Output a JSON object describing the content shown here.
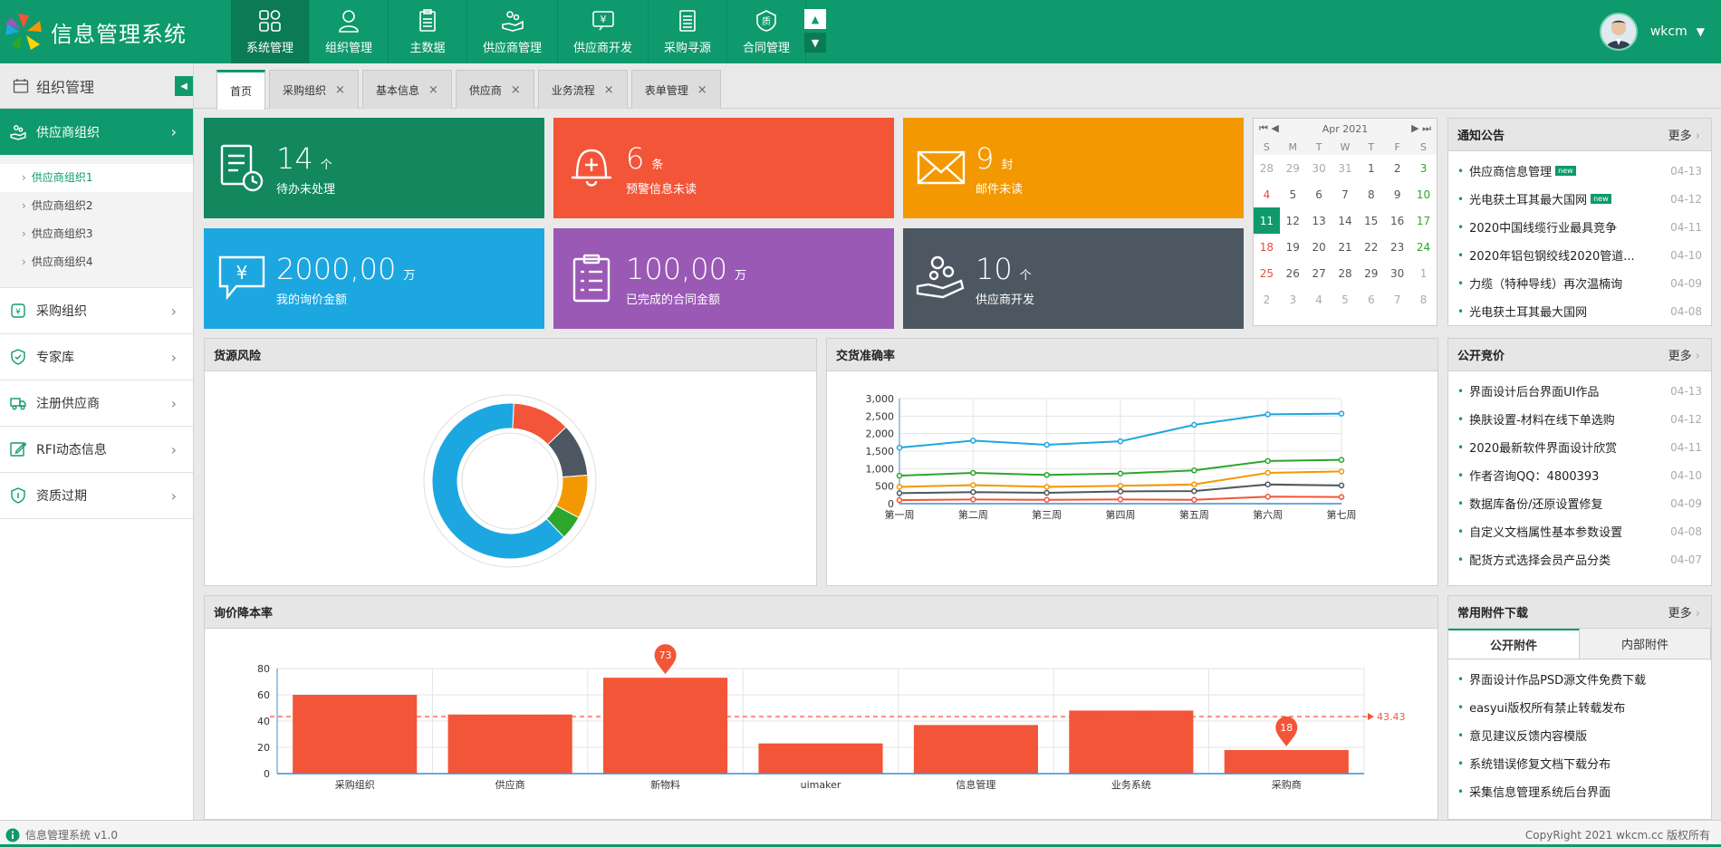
{
  "app": {
    "title": "信息管理系统"
  },
  "topnav": [
    {
      "label": "系统管理",
      "icon": "grid-icon"
    },
    {
      "label": "组织管理",
      "icon": "user-icon"
    },
    {
      "label": "主数据",
      "icon": "clipboard-icon"
    },
    {
      "label": "供应商管理",
      "icon": "supplier-icon"
    },
    {
      "label": "供应商开发",
      "icon": "yen-icon"
    },
    {
      "label": "采购寻源",
      "icon": "document-icon"
    },
    {
      "label": "合同管理",
      "icon": "quality-icon"
    }
  ],
  "user": {
    "name": "wkcm"
  },
  "sidebar": {
    "title": "组织管理",
    "active_item": "供应商组织",
    "subitems": [
      "供应商组织1",
      "供应商组织2",
      "供应商组织3",
      "供应商组织4"
    ],
    "items": [
      "采购组织",
      "专家库",
      "注册供应商",
      "RFI动态信息",
      "资质过期"
    ]
  },
  "tabs": [
    "首页",
    "采购组织",
    "基本信息",
    "供应商",
    "业务流程",
    "表单管理"
  ],
  "stats": [
    {
      "value": "14",
      "unit": "个",
      "label": "待办未处理",
      "color": "#13885f"
    },
    {
      "value": "6",
      "unit": "条",
      "label": "预警信息未读",
      "color": "#f35538"
    },
    {
      "value": "9",
      "unit": "封",
      "label": "邮件未读",
      "color": "#f39800"
    },
    {
      "value": "2000,00",
      "unit": "万",
      "label": "我的询价金额",
      "color": "#1da7e0"
    },
    {
      "value": "100,00",
      "unit": "万",
      "label": "已完成的合同金额",
      "color": "#9b59b6"
    },
    {
      "value": "10",
      "unit": "个",
      "label": "供应商开发",
      "color": "#4d5761"
    }
  ],
  "calendar": {
    "month": "Apr 2021",
    "weekdays": [
      "S",
      "M",
      "T",
      "W",
      "T",
      "F",
      "S"
    ],
    "weeks": [
      [
        "28",
        "29",
        "30",
        "31",
        "1",
        "2",
        "3"
      ],
      [
        "4",
        "5",
        "6",
        "7",
        "8",
        "9",
        "10"
      ],
      [
        "11",
        "12",
        "13",
        "14",
        "15",
        "16",
        "17"
      ],
      [
        "18",
        "19",
        "20",
        "21",
        "22",
        "23",
        "24"
      ],
      [
        "25",
        "26",
        "27",
        "28",
        "29",
        "30",
        "1"
      ],
      [
        "2",
        "3",
        "4",
        "5",
        "6",
        "7",
        "8"
      ]
    ],
    "today": "11"
  },
  "notices": {
    "title": "通知公告",
    "more": "更多",
    "items": [
      {
        "text": "供应商信息管理",
        "date": "04-13",
        "badge": "new"
      },
      {
        "text": "光电获土耳其最大国网",
        "date": "04-12",
        "badge": "new"
      },
      {
        "text": "2020中国线缆行业最具竞争",
        "date": "04-11"
      },
      {
        "text": "2020年铝包钢绞线2020管道...",
        "date": "04-10"
      },
      {
        "text": "力缆（特种导线）再次温楠询",
        "date": "04-09"
      },
      {
        "text": "光电获土耳其最大国网",
        "date": "04-08"
      }
    ]
  },
  "bidding": {
    "title": "公开竞价",
    "more": "更多",
    "items": [
      {
        "text": "界面设计后台界面UI作品",
        "date": "04-13"
      },
      {
        "text": "换肤设置-材料在线下单选购",
        "date": "04-12"
      },
      {
        "text": "2020最新软件界面设计欣赏",
        "date": "04-11"
      },
      {
        "text": "作者咨询QQ：4800393",
        "date": "04-10"
      },
      {
        "text": "数据库备份/还原设置修复",
        "date": "04-09"
      },
      {
        "text": "自定义文档属性基本参数设置",
        "date": "04-08"
      },
      {
        "text": "配货方式选择会员产品分类",
        "date": "04-07"
      }
    ]
  },
  "attachments": {
    "title": "常用附件下载",
    "more": "更多",
    "tabs": [
      "公开附件",
      "内部附件"
    ],
    "items": [
      "界面设计作品PSD源文件免费下载",
      "easyui版权所有禁止转载发布",
      "意见建议反馈内容模版",
      "系统错误修复文档下载分布",
      "采集信息管理系统后台界面"
    ]
  },
  "panels": {
    "risk": "货源风险",
    "delivery": "交货准确率",
    "price": "询价降本率"
  },
  "footer": {
    "left": "信息管理系统 v1.0",
    "right": "CopyRight 2021  wkcm.cc 版权所有"
  },
  "chart_data": [
    {
      "type": "pie",
      "title": "货源风险",
      "labels": [
        "",
        "",
        "",
        "",
        ""
      ],
      "values": [
        12,
        11,
        9,
        5,
        63
      ],
      "colors": [
        "#f35538",
        "#4d5761",
        "#f39800",
        "#2ca62c",
        "#1da7e0"
      ]
    },
    {
      "type": "line",
      "title": "交货准确率",
      "categories": [
        "第一周",
        "第二周",
        "第三周",
        "第四周",
        "第五周",
        "第六周",
        "第七周"
      ],
      "ylim": [
        0,
        3000
      ],
      "yticks": [
        "0",
        "500",
        "1,000",
        "1,500",
        "2,000",
        "2,500",
        "3,000"
      ],
      "series": [
        {
          "values": [
            1600,
            1800,
            1680,
            1780,
            2250,
            2550,
            2570
          ],
          "color": "#1da7e0"
        },
        {
          "values": [
            800,
            880,
            820,
            860,
            950,
            1220,
            1250
          ],
          "color": "#2ca62c"
        },
        {
          "values": [
            480,
            530,
            480,
            510,
            550,
            880,
            920
          ],
          "color": "#f39800"
        },
        {
          "values": [
            300,
            330,
            310,
            350,
            360,
            550,
            520
          ],
          "color": "#4d5761"
        },
        {
          "values": [
            100,
            120,
            110,
            120,
            110,
            200,
            190
          ],
          "color": "#f35538"
        }
      ]
    },
    {
      "type": "bar",
      "title": "询价降本率",
      "categories": [
        "采购组织",
        "供应商",
        "新物料",
        "uimaker",
        "信息管理",
        "业务系统",
        "采购商"
      ],
      "values": [
        60,
        45,
        73,
        23,
        37,
        48,
        18
      ],
      "ylim": [
        0,
        80
      ],
      "yticks": [
        "0",
        "20",
        "40",
        "60",
        "80"
      ],
      "mean": 43.43,
      "mean_label": "43.43",
      "max_label": "73",
      "min_label": "18",
      "color": "#f35538"
    }
  ]
}
